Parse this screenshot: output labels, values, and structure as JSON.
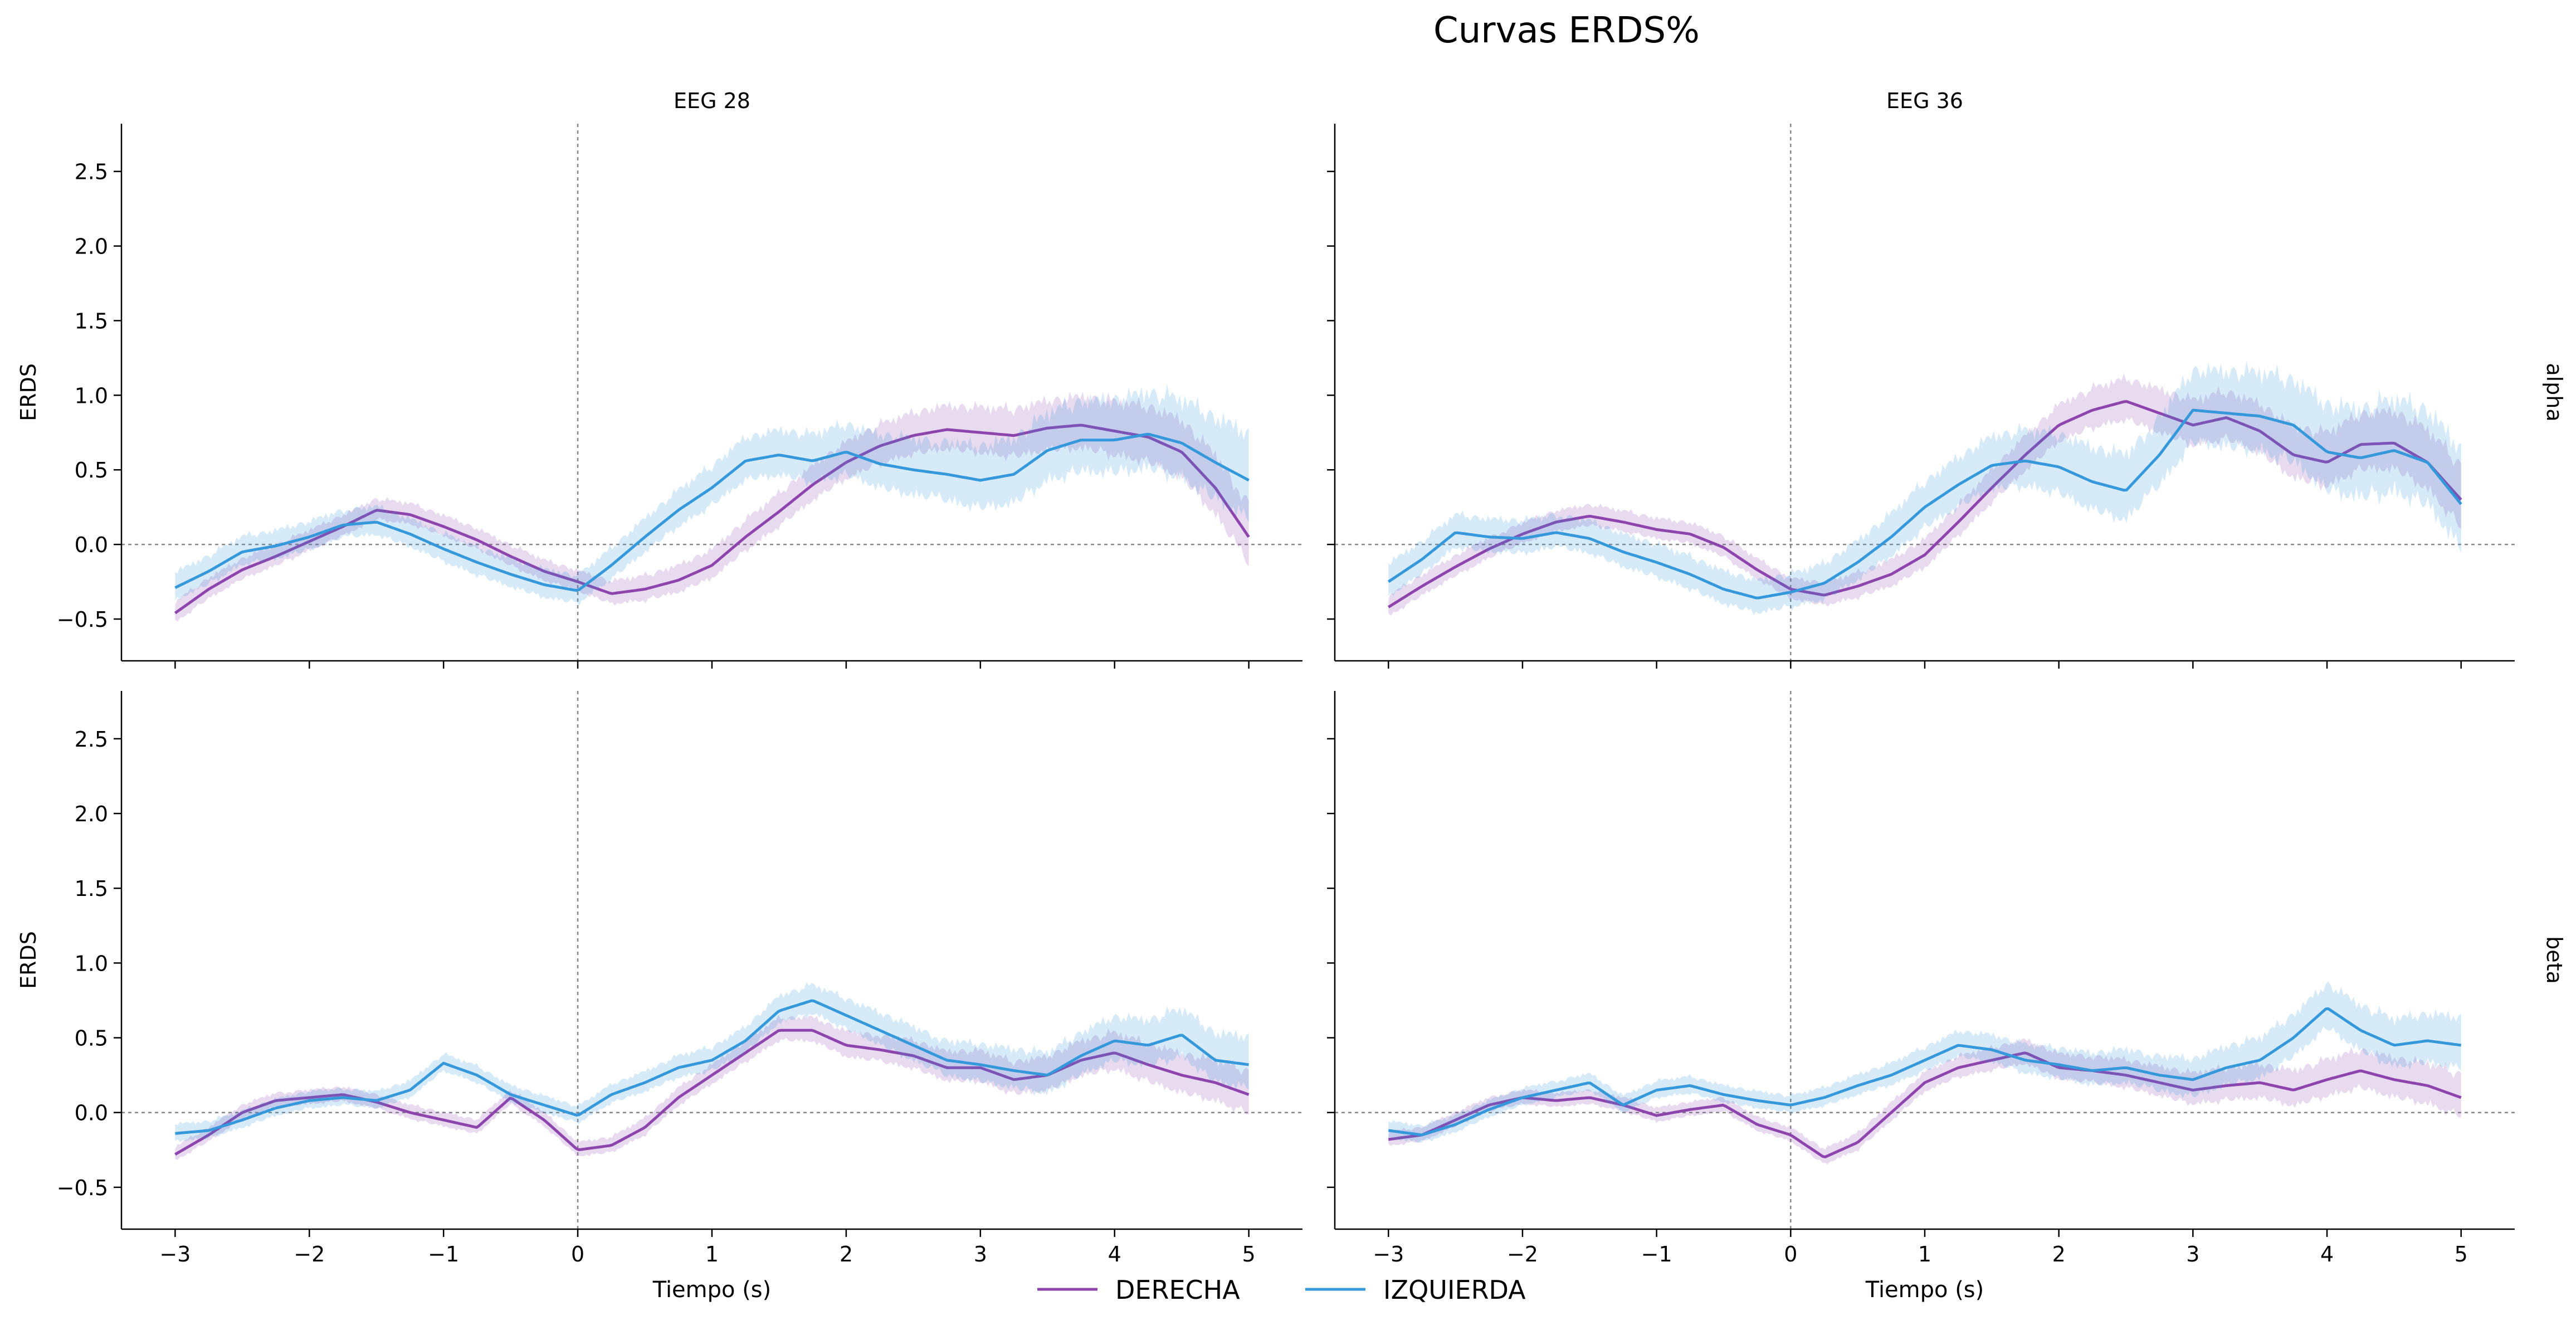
{
  "figure": {
    "title": "Curvas ERDS%",
    "legend": [
      {
        "label": "DERECHA",
        "color": "#8e44ad"
      },
      {
        "label": "IZQUIERDA",
        "color": "#3498db"
      }
    ]
  },
  "chart_data": [
    {
      "type": "line",
      "title": "EEG 28",
      "row_label": "alpha",
      "xlabel": "",
      "ylabel": "ERDS",
      "xlim": [
        -3.4,
        5.4
      ],
      "ylim": [
        -0.78,
        2.82
      ],
      "xticks": [
        -3,
        -2,
        -1,
        0,
        1,
        2,
        3,
        4,
        5
      ],
      "yticks": [
        -0.5,
        0.0,
        0.5,
        1.0,
        1.5,
        2.0,
        2.5
      ],
      "show_xticklabels": false,
      "show_ylabels": true,
      "reference_lines": {
        "x": 0,
        "y": 0
      },
      "series": [
        {
          "name": "DERECHA",
          "color": "#8e44ad",
          "x": [
            -3.0,
            -2.75,
            -2.5,
            -2.25,
            -2.0,
            -1.75,
            -1.5,
            -1.25,
            -1.0,
            -0.75,
            -0.5,
            -0.25,
            0.0,
            0.25,
            0.5,
            0.75,
            1.0,
            1.25,
            1.5,
            1.75,
            2.0,
            2.25,
            2.5,
            2.75,
            3.0,
            3.25,
            3.5,
            3.75,
            4.0,
            4.25,
            4.5,
            4.75,
            5.0
          ],
          "y": [
            -0.46,
            -0.3,
            -0.17,
            -0.08,
            0.02,
            0.12,
            0.23,
            0.2,
            0.12,
            0.03,
            -0.08,
            -0.18,
            -0.25,
            -0.33,
            -0.3,
            -0.24,
            -0.14,
            0.05,
            0.22,
            0.4,
            0.55,
            0.66,
            0.73,
            0.77,
            0.75,
            0.73,
            0.78,
            0.8,
            0.76,
            0.72,
            0.62,
            0.38,
            0.05
          ],
          "band": 0.22
        },
        {
          "name": "IZQUIERDA",
          "color": "#3498db",
          "x": [
            -3.0,
            -2.75,
            -2.5,
            -2.25,
            -2.0,
            -1.75,
            -1.5,
            -1.25,
            -1.0,
            -0.75,
            -0.5,
            -0.25,
            0.0,
            0.25,
            0.5,
            0.75,
            1.0,
            1.25,
            1.5,
            1.75,
            2.0,
            2.25,
            2.5,
            2.75,
            3.0,
            3.25,
            3.5,
            3.75,
            4.0,
            4.25,
            4.5,
            4.75,
            5.0
          ],
          "y": [
            -0.29,
            -0.18,
            -0.05,
            -0.01,
            0.05,
            0.13,
            0.15,
            0.07,
            -0.03,
            -0.12,
            -0.2,
            -0.27,
            -0.31,
            -0.14,
            0.05,
            0.23,
            0.38,
            0.56,
            0.6,
            0.56,
            0.62,
            0.54,
            0.5,
            0.47,
            0.43,
            0.47,
            0.63,
            0.7,
            0.7,
            0.74,
            0.68,
            0.55,
            0.43
          ],
          "band": 0.3
        }
      ]
    },
    {
      "type": "line",
      "title": "EEG 36",
      "row_label": "alpha",
      "xlabel": "",
      "ylabel": "",
      "xlim": [
        -3.4,
        5.4
      ],
      "ylim": [
        -0.78,
        2.82
      ],
      "xticks": [
        -3,
        -2,
        -1,
        0,
        1,
        2,
        3,
        4,
        5
      ],
      "yticks": [
        -0.5,
        0.0,
        0.5,
        1.0,
        1.5,
        2.0,
        2.5
      ],
      "show_xticklabels": false,
      "show_ylabels": false,
      "reference_lines": {
        "x": 0,
        "y": 0
      },
      "series": [
        {
          "name": "DERECHA",
          "color": "#8e44ad",
          "x": [
            -3.0,
            -2.75,
            -2.5,
            -2.25,
            -2.0,
            -1.75,
            -1.5,
            -1.25,
            -1.0,
            -0.75,
            -0.5,
            -0.25,
            0.0,
            0.25,
            0.5,
            0.75,
            1.0,
            1.25,
            1.5,
            1.75,
            2.0,
            2.25,
            2.5,
            2.75,
            3.0,
            3.25,
            3.5,
            3.75,
            4.0,
            4.25,
            4.5,
            4.75,
            5.0
          ],
          "y": [
            -0.42,
            -0.28,
            -0.15,
            -0.03,
            0.07,
            0.15,
            0.19,
            0.15,
            0.1,
            0.07,
            -0.02,
            -0.17,
            -0.3,
            -0.34,
            -0.28,
            -0.2,
            -0.07,
            0.15,
            0.38,
            0.6,
            0.8,
            0.9,
            0.96,
            0.88,
            0.8,
            0.85,
            0.76,
            0.6,
            0.55,
            0.67,
            0.68,
            0.55,
            0.3
          ],
          "band": 0.22
        },
        {
          "name": "IZQUIERDA",
          "color": "#3498db",
          "x": [
            -3.0,
            -2.75,
            -2.5,
            -2.25,
            -2.0,
            -1.75,
            -1.5,
            -1.25,
            -1.0,
            -0.75,
            -0.5,
            -0.25,
            0.0,
            0.25,
            0.5,
            0.75,
            1.0,
            1.25,
            1.5,
            1.75,
            2.0,
            2.25,
            2.5,
            2.75,
            3.0,
            3.25,
            3.5,
            3.75,
            4.0,
            4.25,
            4.5,
            4.75,
            5.0
          ],
          "y": [
            -0.25,
            -0.1,
            0.08,
            0.05,
            0.04,
            0.08,
            0.04,
            -0.05,
            -0.12,
            -0.2,
            -0.3,
            -0.36,
            -0.32,
            -0.26,
            -0.12,
            0.05,
            0.25,
            0.4,
            0.53,
            0.56,
            0.52,
            0.42,
            0.36,
            0.6,
            0.9,
            0.88,
            0.86,
            0.8,
            0.62,
            0.58,
            0.63,
            0.55,
            0.27
          ],
          "band": 0.35
        }
      ]
    },
    {
      "type": "line",
      "title": "",
      "row_label": "beta",
      "xlabel": "Tiempo (s)",
      "ylabel": "ERDS",
      "xlim": [
        -3.4,
        5.4
      ],
      "ylim": [
        -0.78,
        2.82
      ],
      "xticks": [
        -3,
        -2,
        -1,
        0,
        1,
        2,
        3,
        4,
        5
      ],
      "yticks": [
        -0.5,
        0.0,
        0.5,
        1.0,
        1.5,
        2.0,
        2.5
      ],
      "show_xticklabels": true,
      "show_ylabels": true,
      "reference_lines": {
        "x": 0,
        "y": 0
      },
      "series": [
        {
          "name": "DERECHA",
          "color": "#8e44ad",
          "x": [
            -3.0,
            -2.75,
            -2.5,
            -2.25,
            -2.0,
            -1.75,
            -1.5,
            -1.25,
            -1.0,
            -0.75,
            -0.5,
            -0.25,
            0.0,
            0.25,
            0.5,
            0.75,
            1.0,
            1.25,
            1.5,
            1.75,
            2.0,
            2.25,
            2.5,
            2.75,
            3.0,
            3.25,
            3.5,
            3.75,
            4.0,
            4.25,
            4.5,
            4.75,
            5.0
          ],
          "y": [
            -0.28,
            -0.15,
            0.0,
            0.08,
            0.1,
            0.12,
            0.07,
            0.0,
            -0.05,
            -0.1,
            0.1,
            -0.05,
            -0.25,
            -0.22,
            -0.1,
            0.1,
            0.25,
            0.4,
            0.55,
            0.55,
            0.45,
            0.42,
            0.38,
            0.3,
            0.3,
            0.22,
            0.25,
            0.35,
            0.4,
            0.32,
            0.25,
            0.2,
            0.12
          ],
          "band": 0.15
        },
        {
          "name": "IZQUIERDA",
          "color": "#3498db",
          "x": [
            -3.0,
            -2.75,
            -2.5,
            -2.25,
            -2.0,
            -1.75,
            -1.5,
            -1.25,
            -1.0,
            -0.75,
            -0.5,
            -0.25,
            0.0,
            0.25,
            0.5,
            0.75,
            1.0,
            1.25,
            1.5,
            1.75,
            2.0,
            2.25,
            2.5,
            2.75,
            3.0,
            3.25,
            3.5,
            3.75,
            4.0,
            4.25,
            4.5,
            4.75,
            5.0
          ],
          "y": [
            -0.14,
            -0.12,
            -0.05,
            0.03,
            0.08,
            0.1,
            0.08,
            0.15,
            0.33,
            0.25,
            0.12,
            0.05,
            -0.02,
            0.12,
            0.2,
            0.3,
            0.35,
            0.48,
            0.68,
            0.75,
            0.65,
            0.55,
            0.45,
            0.35,
            0.32,
            0.28,
            0.25,
            0.38,
            0.48,
            0.45,
            0.52,
            0.35,
            0.32
          ],
          "band": 0.18
        }
      ]
    },
    {
      "type": "line",
      "title": "",
      "row_label": "beta",
      "xlabel": "Tiempo (s)",
      "ylabel": "",
      "xlim": [
        -3.4,
        5.4
      ],
      "ylim": [
        -0.78,
        2.82
      ],
      "xticks": [
        -3,
        -2,
        -1,
        0,
        1,
        2,
        3,
        4,
        5
      ],
      "yticks": [
        -0.5,
        0.0,
        0.5,
        1.0,
        1.5,
        2.0,
        2.5
      ],
      "show_xticklabels": true,
      "show_ylabels": false,
      "reference_lines": {
        "x": 0,
        "y": 0
      },
      "series": [
        {
          "name": "DERECHA",
          "color": "#8e44ad",
          "x": [
            -3.0,
            -2.75,
            -2.5,
            -2.25,
            -2.0,
            -1.75,
            -1.5,
            -1.25,
            -1.0,
            -0.75,
            -0.5,
            -0.25,
            0.0,
            0.25,
            0.5,
            0.75,
            1.0,
            1.25,
            1.5,
            1.75,
            2.0,
            2.25,
            2.5,
            2.75,
            3.0,
            3.25,
            3.5,
            3.75,
            4.0,
            4.25,
            4.5,
            4.75,
            5.0
          ],
          "y": [
            -0.18,
            -0.15,
            -0.05,
            0.05,
            0.1,
            0.08,
            0.1,
            0.05,
            -0.02,
            0.02,
            0.05,
            -0.08,
            -0.15,
            -0.3,
            -0.2,
            0.0,
            0.2,
            0.3,
            0.35,
            0.4,
            0.3,
            0.28,
            0.25,
            0.2,
            0.15,
            0.18,
            0.2,
            0.15,
            0.22,
            0.28,
            0.22,
            0.18,
            0.1
          ],
          "band": 0.15
        },
        {
          "name": "IZQUIERDA",
          "color": "#3498db",
          "x": [
            -3.0,
            -2.75,
            -2.5,
            -2.25,
            -2.0,
            -1.75,
            -1.5,
            -1.25,
            -1.0,
            -0.75,
            -0.5,
            -0.25,
            0.0,
            0.25,
            0.5,
            0.75,
            1.0,
            1.25,
            1.5,
            1.75,
            2.0,
            2.25,
            2.5,
            2.75,
            3.0,
            3.25,
            3.5,
            3.75,
            4.0,
            4.25,
            4.5,
            4.75,
            5.0
          ],
          "y": [
            -0.12,
            -0.15,
            -0.08,
            0.02,
            0.1,
            0.15,
            0.2,
            0.05,
            0.15,
            0.18,
            0.12,
            0.08,
            0.05,
            0.1,
            0.18,
            0.25,
            0.35,
            0.45,
            0.42,
            0.35,
            0.32,
            0.28,
            0.3,
            0.25,
            0.22,
            0.3,
            0.35,
            0.5,
            0.7,
            0.55,
            0.45,
            0.48,
            0.45
          ],
          "band": 0.18
        }
      ]
    }
  ]
}
